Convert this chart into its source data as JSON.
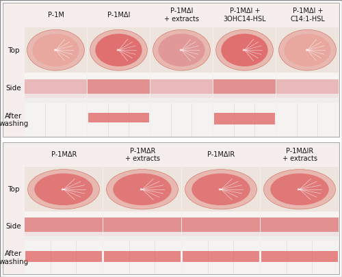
{
  "background_color": "#ffffff",
  "panel1": {
    "col_labels": [
      "P-1M",
      "P-1MΔI",
      "P-1MΔI\n+ extracts",
      "P-1MΔI +\n3OHC14-HSL",
      "P-1MΔI +\nC14:1-HSL"
    ],
    "row_labels": [
      "Top",
      "Side",
      "After\nwashing"
    ],
    "n_cols": 5,
    "n_rows": 3
  },
  "panel2": {
    "col_labels": [
      "P-1MΔR",
      "P-1MΔR\n+ extracts",
      "P-1MΔIR",
      "P-1MΔIR\n+ extracts"
    ],
    "row_labels": [
      "Top",
      "Side",
      "After\nwashing"
    ],
    "n_cols": 4,
    "n_rows": 3
  },
  "panel1_bg": "#f5eeec",
  "panel2_bg": "#f5eeec",
  "cell_bg_top": "#ede0dc",
  "cell_bg_side": "#eeeded",
  "cell_bg_wash": "#f0eeee",
  "top_colors_p1": [
    "#e8a8a0",
    "#e07070",
    "#e09898",
    "#e07070",
    "#e8a8a0"
  ],
  "top_colors_p2": [
    "#e07878",
    "#e07878",
    "#e07878",
    "#e07878"
  ],
  "side_colors_p1": [
    "#e8b0b0",
    "#e08080",
    "#e8b0b0",
    "#e08080",
    "#e8b0b0"
  ],
  "side_colors_p2": [
    "#e08080",
    "#e08080",
    "#e08080",
    "#e08080"
  ],
  "wash_colors_p1_has_biofilm": [
    false,
    true,
    false,
    true,
    false
  ],
  "wash_colors_p2_has_biofilm": [
    true,
    true,
    true,
    true
  ],
  "wash_color": "#e06060",
  "label_fontsize": 7.5,
  "col_label_fontsize": 7.0
}
